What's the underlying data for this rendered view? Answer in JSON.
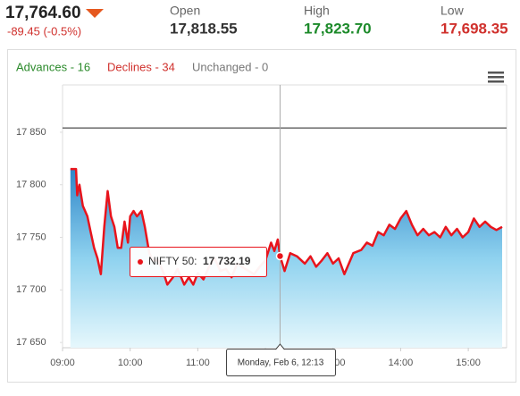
{
  "header": {
    "price": "17,764.60",
    "change": "-89.45 (-0.5%)",
    "stats": [
      {
        "label": "Open",
        "value": "17,818.55"
      },
      {
        "label": "High",
        "value": "17,823.70"
      },
      {
        "label": "Low",
        "value": "17,698.35"
      }
    ]
  },
  "chart_data": {
    "type": "line",
    "breadth": [
      "Advances - 16",
      "Declines - 34",
      "Unchanged - 0"
    ],
    "x": [
      "09:07",
      "09:12",
      "09:13",
      "09:15",
      "09:18",
      "09:22",
      "09:25",
      "09:28",
      "09:31",
      "09:34",
      "09:37",
      "09:40",
      "09:43",
      "09:46",
      "09:49",
      "09:52",
      "09:55",
      "09:58",
      "10:00",
      "10:03",
      "10:06",
      "10:10",
      "10:13",
      "10:17",
      "10:20",
      "10:25",
      "10:30",
      "10:33",
      "10:38",
      "10:42",
      "10:48",
      "10:52",
      "10:56",
      "11:00",
      "11:05",
      "11:10",
      "11:15",
      "11:20",
      "11:25",
      "11:30",
      "11:35",
      "11:42",
      "11:50",
      "11:55",
      "12:00",
      "12:05",
      "12:08",
      "12:11",
      "12:13",
      "12:17",
      "12:22",
      "12:28",
      "12:35",
      "12:40",
      "12:45",
      "12:50",
      "12:55",
      "13:00",
      "13:05",
      "13:10",
      "13:18",
      "13:25",
      "13:30",
      "13:35",
      "13:40",
      "13:45",
      "13:50",
      "13:55",
      "14:00",
      "14:05",
      "14:10",
      "14:15",
      "14:20",
      "14:25",
      "14:30",
      "14:35",
      "14:40",
      "14:45",
      "14:50",
      "14:55",
      "15:00",
      "15:05",
      "15:10",
      "15:15",
      "15:20",
      "15:25",
      "15:30"
    ],
    "series": [
      {
        "color": "#e8141c",
        "values": [
          17815,
          17815,
          17790,
          17800,
          17780,
          17770,
          17755,
          17740,
          17730,
          17715,
          17760,
          17794,
          17770,
          17760,
          17740,
          17740,
          17765,
          17745,
          17770,
          17775,
          17770,
          17775,
          17760,
          17735,
          17728,
          17728,
          17715,
          17705,
          17712,
          17720,
          17705,
          17712,
          17705,
          17716,
          17710,
          17722,
          17730,
          17718,
          17720,
          17712,
          17725,
          17720,
          17715,
          17722,
          17728,
          17745,
          17737,
          17748,
          17732.19,
          17718,
          17735,
          17732,
          17725,
          17732,
          17722,
          17728,
          17735,
          17725,
          17730,
          17715,
          17735,
          17738,
          17745,
          17742,
          17755,
          17752,
          17762,
          17758,
          17768,
          17775,
          17762,
          17752,
          17758,
          17752,
          17755,
          17750,
          17760,
          17752,
          17758,
          17750,
          17755,
          17768,
          17760,
          17765,
          17760,
          17757,
          17760
        ]
      }
    ],
    "reference_line": 17854.05,
    "xlim": [
      "09:00",
      "15:34"
    ],
    "xticks": [
      "09:00",
      "10:00",
      "11:00",
      "12:00",
      "13:00",
      "14:00",
      "15:00"
    ],
    "ylim": [
      17645,
      17895
    ],
    "yticks": [
      {
        "value": 17650,
        "label": "17 650"
      },
      {
        "value": 17700,
        "label": "17 700"
      },
      {
        "value": 17750,
        "label": "17 750"
      },
      {
        "value": 17800,
        "label": "17 800"
      },
      {
        "value": 17850,
        "label": "17 850"
      }
    ],
    "tooltip": {
      "index": 48,
      "name": "NIFTY 50:",
      "value_label": "17 732.19",
      "date_label": "Monday, Feb 6, 12:13"
    }
  }
}
